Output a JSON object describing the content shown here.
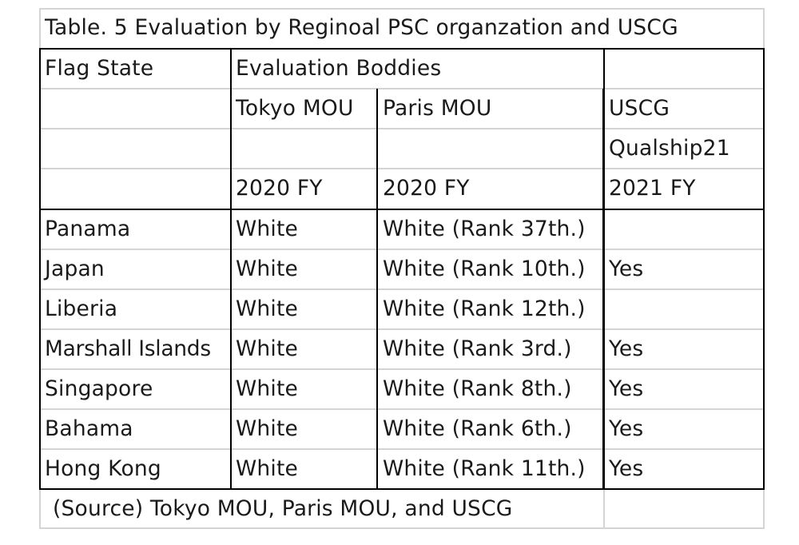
{
  "title": "Table.  5 Evaluation by Reginoal PSC organzation and USCG",
  "header": {
    "flag_state": "Flag State",
    "evaluation_bodies": "Evaluation Boddies",
    "tokyo": "Tokyo MOU",
    "paris": "Paris MOU",
    "uscg": "USCG",
    "qualship": "Qualship21",
    "tokyo_year": "2020 FY",
    "paris_year": "2020 FY",
    "uscg_year": "2021 FY"
  },
  "rows": [
    {
      "flag": "Panama",
      "tokyo": "White",
      "paris": "White (Rank 37th.)",
      "uscg": ""
    },
    {
      "flag": "Japan",
      "tokyo": "White",
      "paris": "White (Rank 10th.)",
      "uscg": "Yes"
    },
    {
      "flag": "Liberia",
      "tokyo": "White",
      "paris": "White (Rank 12th.)",
      "uscg": ""
    },
    {
      "flag": "Marshall Islands",
      "tokyo": "White",
      "paris": "White (Rank 3rd.)",
      "uscg": "Yes"
    },
    {
      "flag": "Singapore",
      "tokyo": "White",
      "paris": "White (Rank 8th.)",
      "uscg": "Yes"
    },
    {
      "flag": "Bahama",
      "tokyo": "White",
      "paris": "White (Rank 6th.)",
      "uscg": "Yes"
    },
    {
      "flag": "Hong Kong",
      "tokyo": "White",
      "paris": "White (Rank 11th.)",
      "uscg": "Yes"
    }
  ],
  "source": "(Source) Tokyo MOU, Paris MOU, and USCG"
}
